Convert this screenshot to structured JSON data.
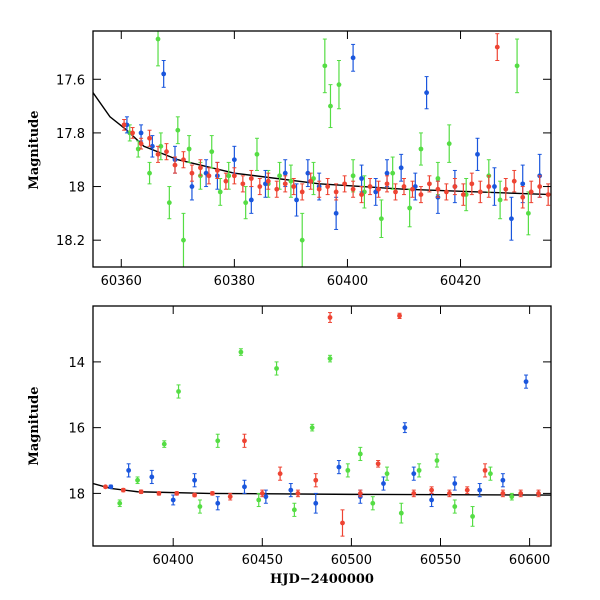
{
  "chart_data": [
    {
      "type": "scatter",
      "title": "",
      "xlabel": "",
      "ylabel": "Magnitude",
      "xlim": [
        60355,
        60436
      ],
      "ylim": [
        18.3,
        17.42
      ],
      "y_inverted": true,
      "x_ticks": [
        60360,
        60380,
        60400,
        60420
      ],
      "x_tick_labels": [
        "60360",
        "60380",
        "60400",
        "60420"
      ],
      "y_ticks": [
        17.6,
        17.8,
        18.0,
        18.2
      ],
      "y_tick_labels": [
        "17.6",
        "17.8",
        "18",
        "18.2"
      ],
      "model_curve": {
        "x": [
          60355,
          60358,
          60361,
          60364,
          60370,
          60380,
          60395,
          60410,
          60436
        ],
        "y": [
          17.65,
          17.74,
          17.79,
          17.85,
          17.9,
          17.95,
          17.99,
          18.01,
          18.03
        ]
      },
      "series": [
        {
          "color": "#55dd44",
          "x": [
            60361.5,
            60363,
            60365,
            60366.5,
            60367,
            60368.5,
            60370,
            60371,
            60372,
            60374,
            60376,
            60377.5,
            60379,
            60382,
            60384,
            60386,
            60388,
            60390,
            60392,
            60394,
            60396,
            60397,
            60398.5,
            60401,
            60403,
            60406,
            60408,
            60411,
            60413,
            60416,
            60418,
            60421,
            60425,
            60427,
            60430,
            60432
          ],
          "y": [
            17.8,
            17.86,
            17.95,
            17.45,
            17.85,
            18.06,
            17.79,
            18.2,
            17.86,
            17.96,
            17.87,
            18.02,
            17.96,
            18.06,
            17.88,
            17.99,
            17.96,
            17.98,
            18.2,
            17.97,
            17.55,
            17.7,
            17.62,
            17.96,
            18.02,
            18.12,
            17.95,
            18.08,
            17.86,
            17.97,
            17.84,
            18.03,
            17.96,
            18.05,
            17.55,
            18.1
          ],
          "err": [
            0.03,
            0.03,
            0.04,
            0.1,
            0.05,
            0.06,
            0.05,
            0.1,
            0.05,
            0.05,
            0.06,
            0.05,
            0.05,
            0.06,
            0.06,
            0.05,
            0.05,
            0.06,
            0.1,
            0.06,
            0.1,
            0.08,
            0.09,
            0.06,
            0.06,
            0.07,
            0.06,
            0.07,
            0.06,
            0.06,
            0.07,
            0.06,
            0.06,
            0.07,
            0.1,
            0.08
          ]
        },
        {
          "color": "#1a56dd",
          "x": [
            60361,
            60363.5,
            60365.5,
            60367.5,
            60369.5,
            60372.5,
            60375,
            60377,
            60380,
            60383,
            60385.5,
            60389,
            60391,
            60393,
            60395,
            60398,
            60401,
            60402.5,
            60405,
            60407,
            60409.5,
            60412,
            60414,
            60416,
            60419,
            60423,
            60426,
            60429,
            60431,
            60434
          ],
          "y": [
            17.77,
            17.8,
            17.85,
            17.58,
            17.9,
            18.0,
            17.95,
            17.96,
            17.9,
            18.05,
            17.99,
            17.95,
            18.05,
            17.95,
            18.0,
            18.1,
            17.52,
            17.97,
            18.02,
            17.95,
            17.93,
            18.0,
            17.65,
            18.04,
            18.0,
            17.88,
            18.0,
            18.12,
            17.99,
            17.96
          ],
          "err": [
            0.03,
            0.03,
            0.04,
            0.05,
            0.05,
            0.05,
            0.05,
            0.05,
            0.05,
            0.05,
            0.05,
            0.05,
            0.06,
            0.05,
            0.05,
            0.06,
            0.05,
            0.05,
            0.05,
            0.05,
            0.05,
            0.05,
            0.06,
            0.06,
            0.06,
            0.06,
            0.07,
            0.08,
            0.07,
            0.08
          ]
        },
        {
          "color": "#ee4433",
          "x": [
            60360.5,
            60362,
            60363.5,
            60365,
            60366.5,
            60368,
            60369.5,
            60371,
            60372.5,
            60374,
            60375.5,
            60377,
            60378.5,
            60380,
            60381.5,
            60383,
            60384.5,
            60386,
            60387.5,
            60389,
            60390.5,
            60392,
            60393.5,
            60395,
            60396.5,
            60398,
            60399.5,
            60401,
            60402.5,
            60404,
            60405.5,
            60407,
            60408.5,
            60410,
            60411.5,
            60413,
            60414.5,
            60416,
            60417.5,
            60419,
            60420.5,
            60422,
            60423.5,
            60425,
            60426.5,
            60428,
            60429.5,
            60431,
            60432.5,
            60434,
            60435.5
          ],
          "y": [
            17.77,
            17.8,
            17.84,
            17.82,
            17.88,
            17.87,
            17.92,
            17.9,
            17.95,
            17.93,
            17.96,
            17.94,
            17.98,
            17.96,
            17.99,
            17.97,
            18.0,
            17.98,
            18.01,
            17.99,
            18.0,
            18.02,
            17.98,
            18.01,
            18.0,
            18.02,
            17.99,
            18.01,
            18.03,
            18.0,
            18.01,
            17.99,
            18.02,
            18.0,
            18.01,
            18.03,
            17.99,
            18.01,
            18.02,
            18.0,
            18.03,
            17.99,
            18.02,
            18.0,
            17.48,
            18.01,
            17.98,
            18.04,
            18.02,
            18.0,
            18.03
          ],
          "err": [
            0.02,
            0.02,
            0.02,
            0.03,
            0.03,
            0.03,
            0.03,
            0.03,
            0.03,
            0.03,
            0.03,
            0.03,
            0.03,
            0.03,
            0.03,
            0.03,
            0.03,
            0.03,
            0.03,
            0.03,
            0.03,
            0.03,
            0.03,
            0.03,
            0.03,
            0.03,
            0.03,
            0.03,
            0.03,
            0.03,
            0.03,
            0.03,
            0.03,
            0.03,
            0.03,
            0.03,
            0.03,
            0.03,
            0.03,
            0.03,
            0.04,
            0.04,
            0.04,
            0.04,
            0.05,
            0.04,
            0.04,
            0.04,
            0.04,
            0.04,
            0.04
          ]
        }
      ]
    },
    {
      "type": "scatter",
      "title": "",
      "xlabel": "HJD−2400000",
      "ylabel": "Magnitude",
      "xlim": [
        60355,
        60612
      ],
      "ylim": [
        19.6,
        12.3
      ],
      "y_inverted": true,
      "x_ticks": [
        60400,
        60450,
        60500,
        60550,
        60600
      ],
      "x_tick_labels": [
        "60400",
        "60450",
        "60500",
        "60550",
        "60600"
      ],
      "y_ticks": [
        14,
        16,
        18
      ],
      "y_tick_labels": [
        "14",
        "16",
        "18"
      ],
      "model_curve": {
        "x": [
          60355,
          60365,
          60380,
          60420,
          60500,
          60612
        ],
        "y": [
          17.7,
          17.85,
          17.95,
          18.0,
          18.03,
          18.05
        ]
      },
      "series": [
        {
          "color": "#55dd44",
          "x": [
            60370,
            60380,
            60395,
            60403,
            60415,
            60425,
            60438,
            60448,
            60458,
            60468,
            60478,
            60488,
            60498,
            60505,
            60512,
            60520,
            60528,
            60538,
            60548,
            60558,
            60568,
            60578,
            60590
          ],
          "y": [
            18.3,
            17.6,
            16.5,
            14.9,
            18.4,
            16.4,
            13.7,
            18.2,
            14.2,
            18.5,
            16.0,
            13.9,
            17.3,
            16.8,
            18.3,
            17.4,
            18.6,
            17.3,
            17.0,
            18.4,
            18.7,
            17.4,
            18.1
          ],
          "err": [
            0.1,
            0.1,
            0.1,
            0.2,
            0.2,
            0.2,
            0.1,
            0.2,
            0.2,
            0.2,
            0.1,
            0.1,
            0.2,
            0.2,
            0.2,
            0.2,
            0.3,
            0.2,
            0.2,
            0.2,
            0.3,
            0.2,
            0.1
          ]
        },
        {
          "color": "#1a56dd",
          "x": [
            60365,
            60375,
            60388,
            60400,
            60412,
            60425,
            60440,
            60452,
            60466,
            60480,
            60493,
            60505,
            60518,
            60530,
            60535,
            60545,
            60558,
            60572,
            60585,
            60598
          ],
          "y": [
            17.8,
            17.3,
            17.5,
            18.2,
            17.6,
            18.3,
            17.8,
            18.1,
            17.9,
            18.3,
            17.2,
            18.1,
            17.7,
            16.0,
            17.4,
            18.2,
            17.7,
            17.9,
            17.6,
            14.6
          ],
          "err": [
            0.05,
            0.2,
            0.2,
            0.15,
            0.2,
            0.2,
            0.2,
            0.2,
            0.2,
            0.3,
            0.2,
            0.2,
            0.2,
            0.15,
            0.2,
            0.2,
            0.2,
            0.2,
            0.2,
            0.2
          ]
        },
        {
          "color": "#ee4433",
          "x": [
            60362,
            60372,
            60382,
            60392,
            60402,
            60412,
            60422,
            60432,
            60440,
            60450,
            60460,
            60470,
            60480,
            60488,
            60495,
            60505,
            60515,
            60527,
            60535,
            60545,
            60555,
            60565,
            60575,
            60585,
            60595,
            60605
          ],
          "y": [
            17.8,
            17.9,
            17.95,
            18.0,
            18.0,
            18.05,
            18.0,
            18.1,
            16.4,
            18.0,
            17.4,
            18.0,
            17.6,
            12.65,
            18.9,
            18.0,
            17.1,
            12.6,
            18.0,
            17.9,
            18.0,
            17.9,
            17.3,
            18.0,
            18.0,
            18.0
          ],
          "err": [
            0.03,
            0.05,
            0.05,
            0.05,
            0.05,
            0.05,
            0.05,
            0.1,
            0.2,
            0.1,
            0.2,
            0.1,
            0.2,
            0.15,
            0.4,
            0.1,
            0.1,
            0.08,
            0.1,
            0.1,
            0.1,
            0.1,
            0.2,
            0.1,
            0.1,
            0.1
          ]
        }
      ]
    }
  ]
}
